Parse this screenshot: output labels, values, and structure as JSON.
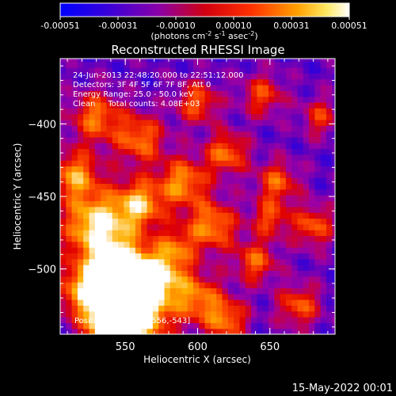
{
  "chart_data": {
    "type": "heatmap",
    "title": "Reconstructed RHESSI Image",
    "xlabel": "Heliocentric X (arcsec)",
    "ylabel": "Heliocentric Y (arcsec)",
    "x_range": [
      505,
      695
    ],
    "y_range": [
      -545,
      -355
    ],
    "x_ticks": [
      550,
      600,
      650
    ],
    "y_ticks": [
      -400,
      -450,
      -500
    ],
    "colorbar": {
      "range": [
        -0.00051,
        0.00051
      ],
      "ticks": [
        "-0.00051",
        "-0.00031",
        "-0.00010",
        "0.00010",
        "0.00031",
        "0.00051"
      ],
      "unit_label_parts": [
        "(photons cm",
        "-2",
        " s",
        "-1",
        " asec",
        "-2",
        ")"
      ]
    },
    "annotations": [
      "24-Jun-2013 22:48:20.000 to 22:51:12.000",
      "Detectors: 3F 4F 5F 6F 7F 8F, Att 0",
      "Energy Range: 25.0 - 50.0 keV",
      "Clean     Total counts: 4.08E+03"
    ],
    "peak_label": "Position of Peak = [556,-543]",
    "peak_position": [
      556,
      -543
    ],
    "colors": {
      "background": "#000000",
      "colormap": [
        "#0000ff",
        "#4a00c8",
        "#a000a0",
        "#e00000",
        "#ff5000",
        "#ffb000",
        "#ffffff"
      ]
    }
  },
  "footer": {
    "timestamp": "15-May-2022 00:01"
  }
}
